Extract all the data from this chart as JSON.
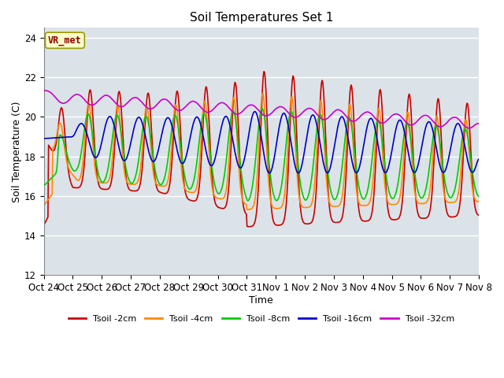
{
  "title": "Soil Temperatures Set 1",
  "xlabel": "Time",
  "ylabel": "Soil Temperature (C)",
  "ylim": [
    12,
    24.5
  ],
  "xlim": [
    0,
    15
  ],
  "yticks": [
    12,
    14,
    16,
    18,
    20,
    22,
    24
  ],
  "xtick_labels": [
    "Oct 24",
    "Oct 25",
    "Oct 26",
    "Oct 27",
    "Oct 28",
    "Oct 29",
    "Oct 30",
    "Oct 31",
    "Nov 1",
    "Nov 2",
    "Nov 3",
    "Nov 4",
    "Nov 5",
    "Nov 6",
    "Nov 7",
    "Nov 8"
  ],
  "background_color": "#dce3e8",
  "grid_color": "#ffffff",
  "fig_bg": "#ffffff",
  "series": {
    "Tsoil -2cm": {
      "color": "#cc0000",
      "linewidth": 1.2
    },
    "Tsoil -4cm": {
      "color": "#ff8800",
      "linewidth": 1.2
    },
    "Tsoil -8cm": {
      "color": "#00cc00",
      "linewidth": 1.2
    },
    "Tsoil -16cm": {
      "color": "#0000cc",
      "linewidth": 1.2
    },
    "Tsoil -32cm": {
      "color": "#cc00cc",
      "linewidth": 1.2
    }
  },
  "annotation_text": "VR_met",
  "annotation_color": "#8b0000",
  "annotation_bg": "#ffffcc",
  "annotation_border": "#999900"
}
